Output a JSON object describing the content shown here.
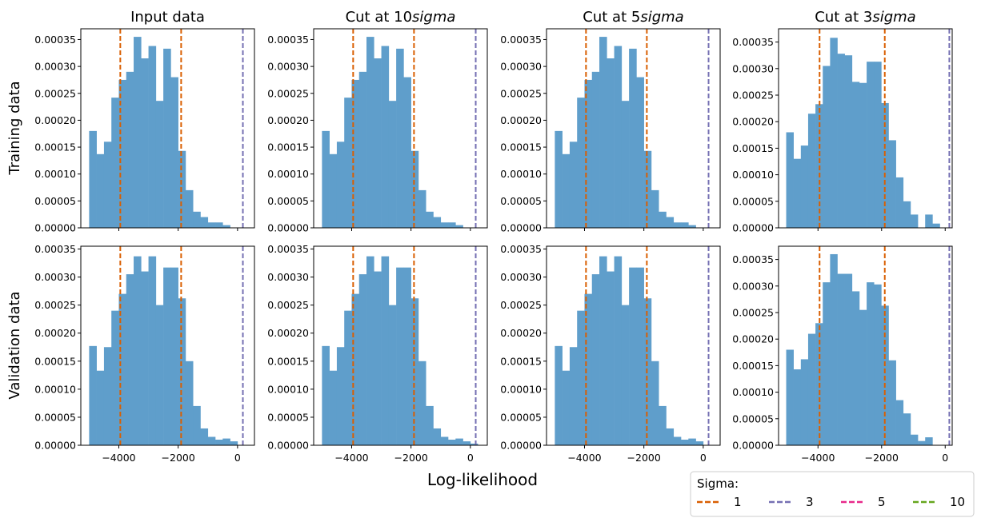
{
  "figure": {
    "row_labels": [
      "Training data",
      "Validation data"
    ],
    "x_label": "Log-likelihood"
  },
  "legend": {
    "title": "Sigma:",
    "entries": [
      {
        "label": "1",
        "color": "#d95f02"
      },
      {
        "label": "3",
        "color": "#7570b3"
      },
      {
        "label": "5",
        "color": "#e7298a"
      },
      {
        "label": "10",
        "color": "#66a61e"
      }
    ]
  },
  "colors": {
    "bar": "#5f9ecb"
  },
  "chart_data": [
    {
      "type": "bar",
      "title_prefix": "Input data",
      "title_italic": "",
      "row": "Training data",
      "bin_edges_start": -5000,
      "bin_width": 250,
      "values": [
        0.00018,
        0.000137,
        0.00016,
        0.000242,
        0.000275,
        0.00029,
        0.000355,
        0.000315,
        0.000338,
        0.000236,
        0.000333,
        0.00028,
        0.000143,
        7e-05,
        3e-05,
        2e-05,
        1e-05,
        1e-05,
        5e-06
      ],
      "vlines": [
        {
          "x": -3950,
          "sigma": "1"
        },
        {
          "x": -1900,
          "sigma": "1"
        },
        {
          "x": 180,
          "sigma": "3"
        }
      ],
      "xlim": [
        -5280,
        570
      ],
      "ylim": [
        0,
        0.00037
      ],
      "yticks": [
        "0.00000",
        "0.00005",
        "0.00010",
        "0.00015",
        "0.00020",
        "0.00025",
        "0.00030",
        "0.00035"
      ],
      "xticks": [],
      "xtick_labels": []
    },
    {
      "type": "bar",
      "title_prefix": "Cut at 10",
      "title_italic": "sigma",
      "row": "Training data",
      "bin_edges_start": -5000,
      "bin_width": 250,
      "values": [
        0.00018,
        0.000137,
        0.00016,
        0.000242,
        0.000275,
        0.00029,
        0.000355,
        0.000315,
        0.000338,
        0.000236,
        0.000333,
        0.00028,
        0.000143,
        7e-05,
        3e-05,
        2e-05,
        1e-05,
        1e-05,
        5e-06
      ],
      "vlines": [
        {
          "x": -3950,
          "sigma": "1"
        },
        {
          "x": -1900,
          "sigma": "1"
        },
        {
          "x": 180,
          "sigma": "3"
        }
      ],
      "xlim": [
        -5280,
        570
      ],
      "ylim": [
        0,
        0.00037
      ],
      "yticks": [
        "0.00000",
        "0.00005",
        "0.00010",
        "0.00015",
        "0.00020",
        "0.00025",
        "0.00030",
        "0.00035"
      ],
      "xticks": [],
      "xtick_labels": []
    },
    {
      "type": "bar",
      "title_prefix": "Cut at 5",
      "title_italic": "sigma",
      "row": "Training data",
      "bin_edges_start": -5000,
      "bin_width": 250,
      "values": [
        0.00018,
        0.000137,
        0.00016,
        0.000242,
        0.000275,
        0.00029,
        0.000355,
        0.000315,
        0.000338,
        0.000236,
        0.000333,
        0.00028,
        0.000143,
        7e-05,
        3e-05,
        2e-05,
        1e-05,
        1e-05,
        5e-06
      ],
      "vlines": [
        {
          "x": -3950,
          "sigma": "1"
        },
        {
          "x": -1900,
          "sigma": "1"
        },
        {
          "x": 180,
          "sigma": "3"
        }
      ],
      "xlim": [
        -5280,
        570
      ],
      "ylim": [
        0,
        0.00037
      ],
      "yticks": [
        "0.00000",
        "0.00005",
        "0.00010",
        "0.00015",
        "0.00020",
        "0.00025",
        "0.00030",
        "0.00035"
      ],
      "xticks": [],
      "xtick_labels": []
    },
    {
      "type": "bar",
      "title_prefix": "Cut at 3",
      "title_italic": "sigma",
      "row": "Training data",
      "bin_edges_start": -5000,
      "bin_width": 230,
      "values": [
        0.00018,
        0.00013,
        0.000155,
        0.000215,
        0.000233,
        0.000305,
        0.000358,
        0.000328,
        0.000325,
        0.000275,
        0.000273,
        0.000313,
        0.000313,
        0.000235,
        0.000165,
        9.5e-05,
        5e-05,
        2.5e-05,
        0.0,
        2.5e-05,
        8e-06
      ],
      "vlines": [
        {
          "x": -3950,
          "sigma": "1"
        },
        {
          "x": -1900,
          "sigma": "1"
        },
        {
          "x": 130,
          "sigma": "3"
        }
      ],
      "xlim": [
        -5240,
        220
      ],
      "ylim": [
        0,
        0.000375
      ],
      "yticks": [
        "0.00000",
        "0.00005",
        "0.00010",
        "0.00015",
        "0.00020",
        "0.00025",
        "0.00030",
        "0.00035"
      ],
      "xticks": [],
      "xtick_labels": []
    },
    {
      "type": "bar",
      "title_prefix": "",
      "title_italic": "",
      "row": "Validation data",
      "bin_edges_start": -5000,
      "bin_width": 250,
      "values": [
        0.000177,
        0.000133,
        0.000175,
        0.00024,
        0.00027,
        0.000305,
        0.000337,
        0.00031,
        0.000337,
        0.00025,
        0.000317,
        0.000317,
        0.000262,
        0.00015,
        7e-05,
        3e-05,
        1.5e-05,
        1e-05,
        1.2e-05,
        7e-06
      ],
      "vlines": [
        {
          "x": -3950,
          "sigma": "1"
        },
        {
          "x": -1900,
          "sigma": "1"
        },
        {
          "x": 180,
          "sigma": "3"
        }
      ],
      "xlim": [
        -5280,
        570
      ],
      "ylim": [
        0,
        0.000355
      ],
      "yticks": [
        "0.00000",
        "0.00005",
        "0.00010",
        "0.00015",
        "0.00020",
        "0.00025",
        "0.00030",
        "0.00035"
      ],
      "xticks": [
        -4000,
        -2000,
        0
      ],
      "xtick_labels": [
        "−4000",
        "−2000",
        "0"
      ]
    },
    {
      "type": "bar",
      "title_prefix": "",
      "title_italic": "",
      "row": "Validation data",
      "bin_edges_start": -5000,
      "bin_width": 250,
      "values": [
        0.000177,
        0.000133,
        0.000175,
        0.00024,
        0.00027,
        0.000305,
        0.000337,
        0.00031,
        0.000337,
        0.00025,
        0.000317,
        0.000317,
        0.000262,
        0.00015,
        7e-05,
        3e-05,
        1.5e-05,
        1e-05,
        1.2e-05,
        7e-06,
        3e-06
      ],
      "vlines": [
        {
          "x": -3950,
          "sigma": "1"
        },
        {
          "x": -1900,
          "sigma": "1"
        },
        {
          "x": 180,
          "sigma": "3"
        }
      ],
      "xlim": [
        -5280,
        570
      ],
      "ylim": [
        0,
        0.000355
      ],
      "yticks": [
        "0.00000",
        "0.00005",
        "0.00010",
        "0.00015",
        "0.00020",
        "0.00025",
        "0.00030",
        "0.00035"
      ],
      "xticks": [
        -4000,
        -2000,
        0
      ],
      "xtick_labels": [
        "−4000",
        "−2000",
        "0"
      ]
    },
    {
      "type": "bar",
      "title_prefix": "",
      "title_italic": "",
      "row": "Validation data",
      "bin_edges_start": -5000,
      "bin_width": 250,
      "values": [
        0.000177,
        0.000133,
        0.000175,
        0.00024,
        0.00027,
        0.000305,
        0.000337,
        0.00031,
        0.000337,
        0.00025,
        0.000317,
        0.000317,
        0.000262,
        0.00015,
        7e-05,
        3e-05,
        1.5e-05,
        1e-05,
        1.2e-05,
        7e-06
      ],
      "vlines": [
        {
          "x": -3950,
          "sigma": "1"
        },
        {
          "x": -1900,
          "sigma": "1"
        },
        {
          "x": 180,
          "sigma": "3"
        }
      ],
      "xlim": [
        -5280,
        570
      ],
      "ylim": [
        0,
        0.000355
      ],
      "yticks": [
        "0.00000",
        "0.00005",
        "0.00010",
        "0.00015",
        "0.00020",
        "0.00025",
        "0.00030",
        "0.00035"
      ],
      "xticks": [
        -4000,
        -2000,
        0
      ],
      "xtick_labels": [
        "−4000",
        "−2000",
        "0"
      ]
    },
    {
      "type": "bar",
      "title_prefix": "",
      "title_italic": "",
      "row": "Validation data",
      "bin_edges_start": -5000,
      "bin_width": 230,
      "values": [
        0.00018,
        0.000143,
        0.000162,
        0.00021,
        0.00023,
        0.000307,
        0.00036,
        0.000323,
        0.000323,
        0.00029,
        0.000255,
        0.000307,
        0.000303,
        0.000263,
        0.00016,
        8.5e-05,
        6e-05,
        2e-05,
        8e-06,
        1.5e-05,
        0.0
      ],
      "vlines": [
        {
          "x": -3950,
          "sigma": "1"
        },
        {
          "x": -1900,
          "sigma": "1"
        },
        {
          "x": 130,
          "sigma": "3"
        }
      ],
      "xlim": [
        -5240,
        220
      ],
      "ylim": [
        0,
        0.000375
      ],
      "yticks": [
        "0.00000",
        "0.00005",
        "0.00010",
        "0.00015",
        "0.00020",
        "0.00025",
        "0.00030",
        "0.00035"
      ],
      "xticks": [
        -4000,
        -2000,
        0
      ],
      "xtick_labels": [
        "−4000",
        "−2000",
        "0"
      ]
    }
  ]
}
